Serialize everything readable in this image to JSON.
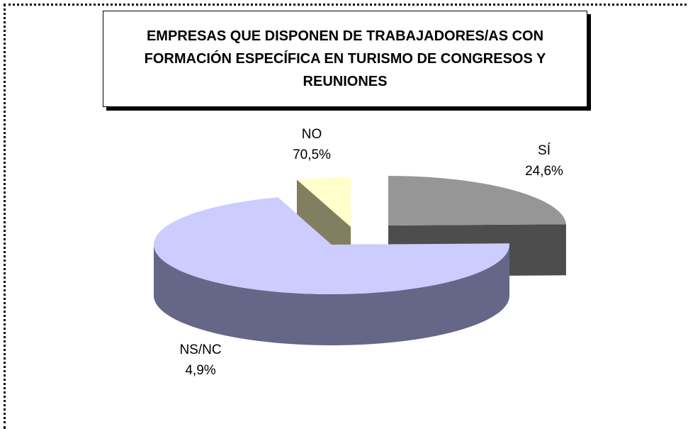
{
  "chart_data": {
    "type": "pie",
    "title": "EMPRESAS QUE DISPONEN DE TRABAJADORES/AS CON FORMACIÓN ESPECÍFICA EN TURISMO DE CONGRESOS Y REUNIONES",
    "categories": [
      "SÍ",
      "NO",
      "NS/NC"
    ],
    "values": [
      24.6,
      70.5,
      4.9
    ],
    "value_labels": [
      "24,6%",
      "70,5%",
      "4,9%"
    ],
    "colors": [
      "#969696",
      "#ccccff",
      "#ffffcc"
    ],
    "side_colors": [
      "#4d4d4d",
      "#666688",
      "#808060"
    ]
  }
}
